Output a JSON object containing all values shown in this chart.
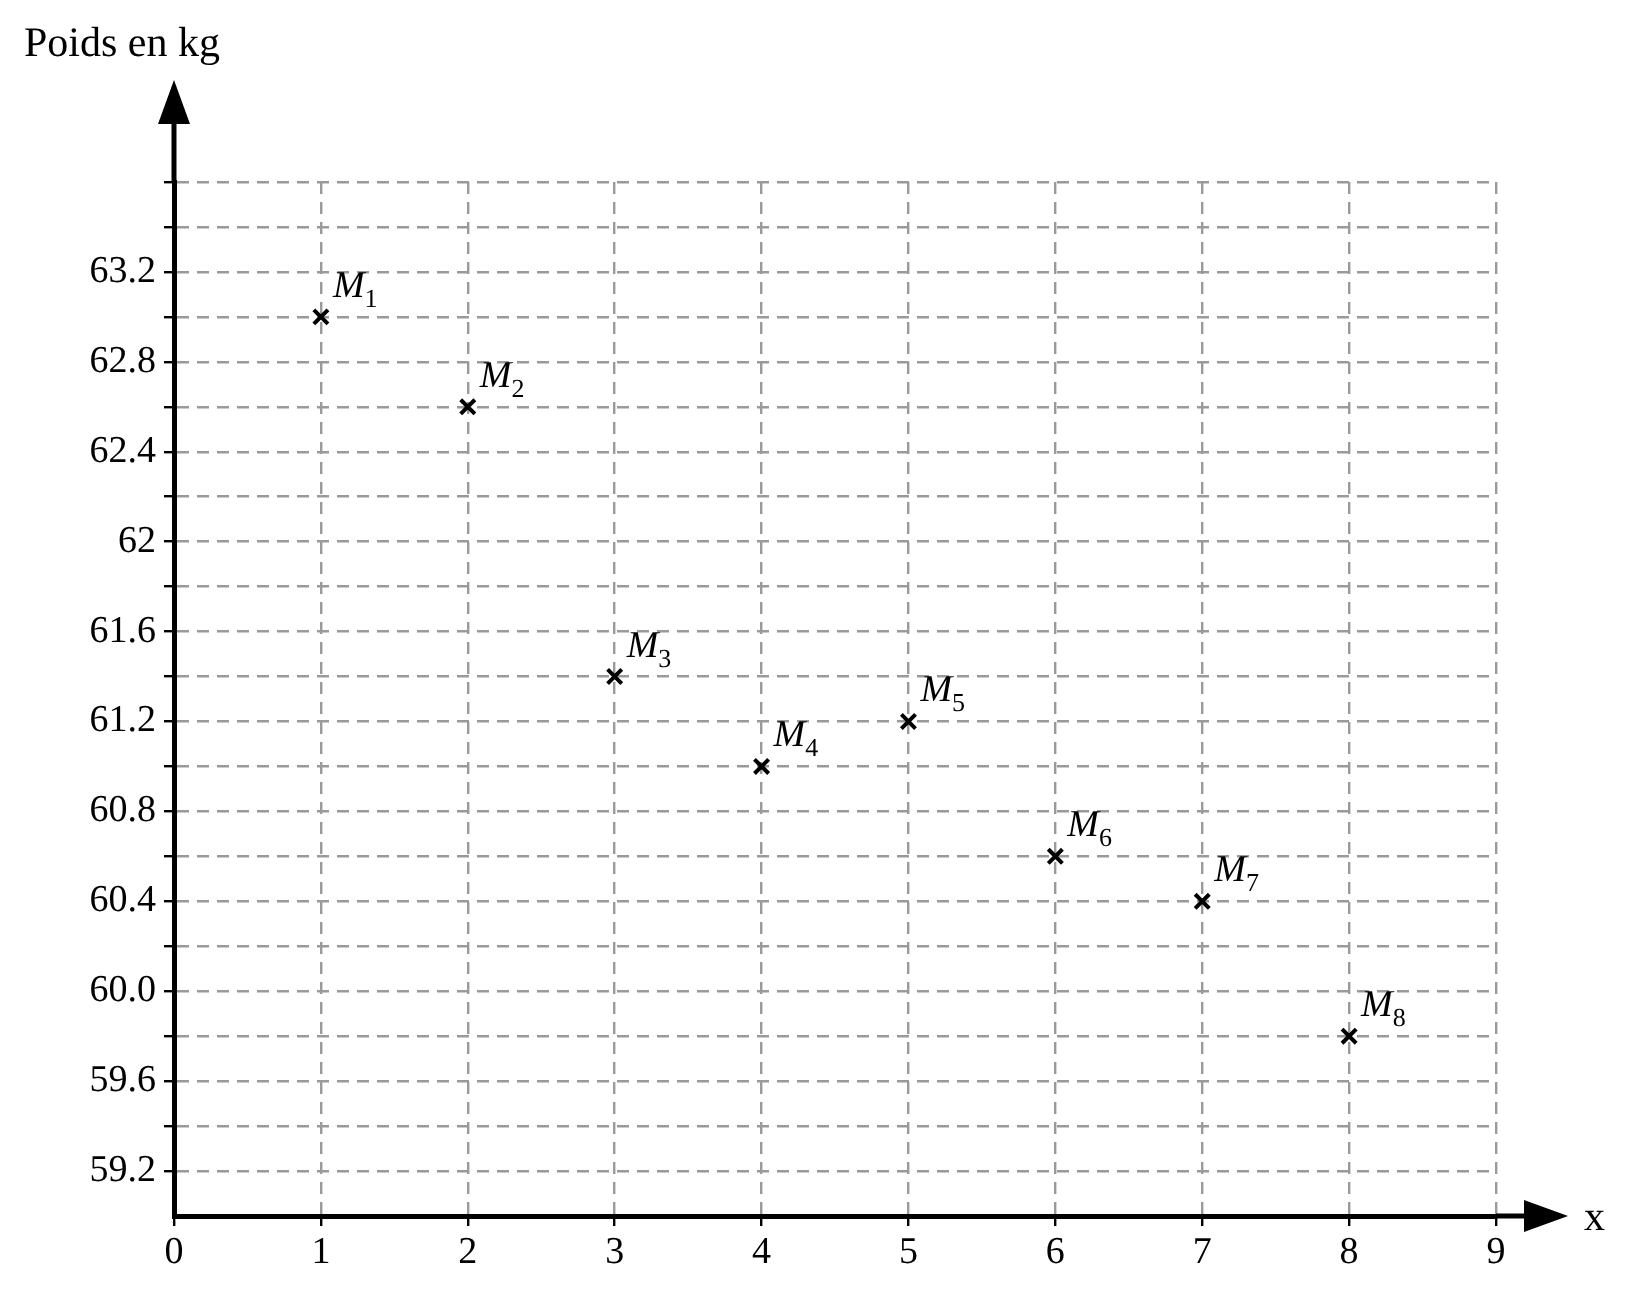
{
  "chart_data": {
    "type": "scatter",
    "ylabel": "Poids en kg",
    "xlabel": "x",
    "x": [
      1,
      2,
      3,
      4,
      5,
      6,
      7,
      8
    ],
    "series": [
      {
        "color": "#000000",
        "values": [
          63.0,
          62.6,
          61.4,
          61.0,
          61.2,
          60.6,
          60.4,
          59.8
        ]
      }
    ],
    "marker": "cross",
    "grid": true,
    "legend": false,
    "xlim": [
      0,
      9
    ],
    "xticks": [
      0,
      1,
      2,
      3,
      4,
      5,
      6,
      7,
      8,
      9
    ],
    "ylim": [
      59.0,
      63.6
    ],
    "yticks": [
      59.2,
      {
        "value": 59.4,
        "label": null
      },
      59.6,
      {
        "value": 59.8,
        "label": null
      },
      {
        "value": 60.0,
        "label": "60.0"
      },
      {
        "value": 60.2,
        "label": null
      },
      60.4,
      {
        "value": 60.6,
        "label": null
      },
      60.8,
      {
        "value": 61.0,
        "label": null
      },
      61.2,
      {
        "value": 61.4,
        "label": null
      },
      61.6,
      {
        "value": 61.8,
        "label": null
      },
      62,
      {
        "value": 62.2,
        "label": null
      },
      62.4,
      {
        "value": 62.6,
        "label": null
      },
      62.8,
      {
        "value": 63.0,
        "label": null
      },
      63.2,
      {
        "value": 63.4,
        "label": null
      },
      {
        "value": 63.6,
        "label": null
      }
    ],
    "annotations": [
      {
        "text": "M$_{1}$",
        "x": 1,
        "y": 63.0
      },
      {
        "text": "M$_{2}$",
        "x": 2,
        "y": 62.6
      },
      {
        "text": "M$_{3}$",
        "x": 3,
        "y": 61.4
      },
      {
        "text": "M$_{4}$",
        "x": 4,
        "y": 61.0
      },
      {
        "text": "M$_{5}$",
        "x": 5,
        "y": 61.2
      },
      {
        "text": "M$_{6}$",
        "x": 6,
        "y": 60.6
      },
      {
        "text": "M$_{7}$",
        "x": 7,
        "y": 60.4
      },
      {
        "text": "M$_{8}$",
        "x": 8,
        "y": 59.8
      }
    ]
  }
}
